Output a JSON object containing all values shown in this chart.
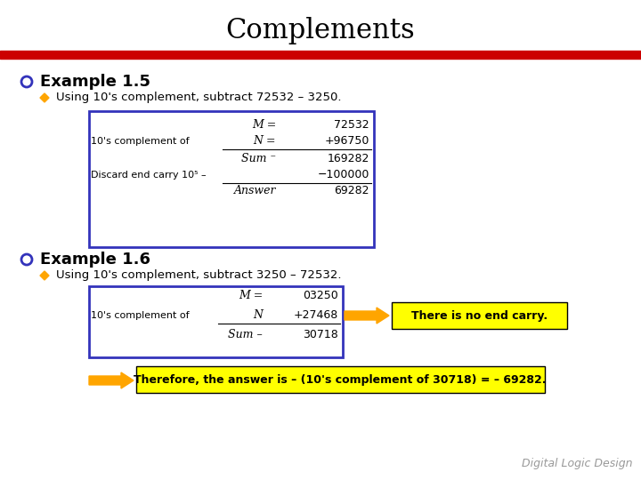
{
  "title": "Complements",
  "background_color": "#ffffff",
  "title_color": "#000000",
  "red_bar_color": "#cc0000",
  "blue_border_color": "#3333bb",
  "example1_header": "Example 1.5",
  "example1_bullet": "Using 10's complement, subtract 72532 – 3250.",
  "table1_rows": [
    [
      "",
      "M =",
      "72532"
    ],
    [
      "10's complement of",
      "N =",
      "+96750"
    ],
    [
      "",
      "Sum ⁻",
      "169282"
    ],
    [
      "Discard end carry 10⁵ –",
      "",
      "−100000"
    ],
    [
      "",
      "Answer",
      "69282"
    ]
  ],
  "table1_underline_after": [
    1,
    3
  ],
  "example2_header": "Example 1.6",
  "example2_bullet": "Using 10's complement, subtract 3250 – 72532.",
  "table2_rows": [
    [
      "",
      "M =",
      "03250"
    ],
    [
      "10's complement of",
      "N",
      "+27468"
    ],
    [
      "",
      "Sum –",
      "30718"
    ]
  ],
  "table2_underline_after": [
    1
  ],
  "arrow_color": "#FFA500",
  "carry_note": "There is no end carry.",
  "carry_note_bg": "#FFFF00",
  "final_note": "Therefore, the answer is – (10's complement of 30718) = – 69282.",
  "final_note_bg": "#FFFF00",
  "footer": "Digital Logic Design",
  "circle_bullet_color": "#3333bb",
  "diamond_bullet_color": "#FFA500"
}
